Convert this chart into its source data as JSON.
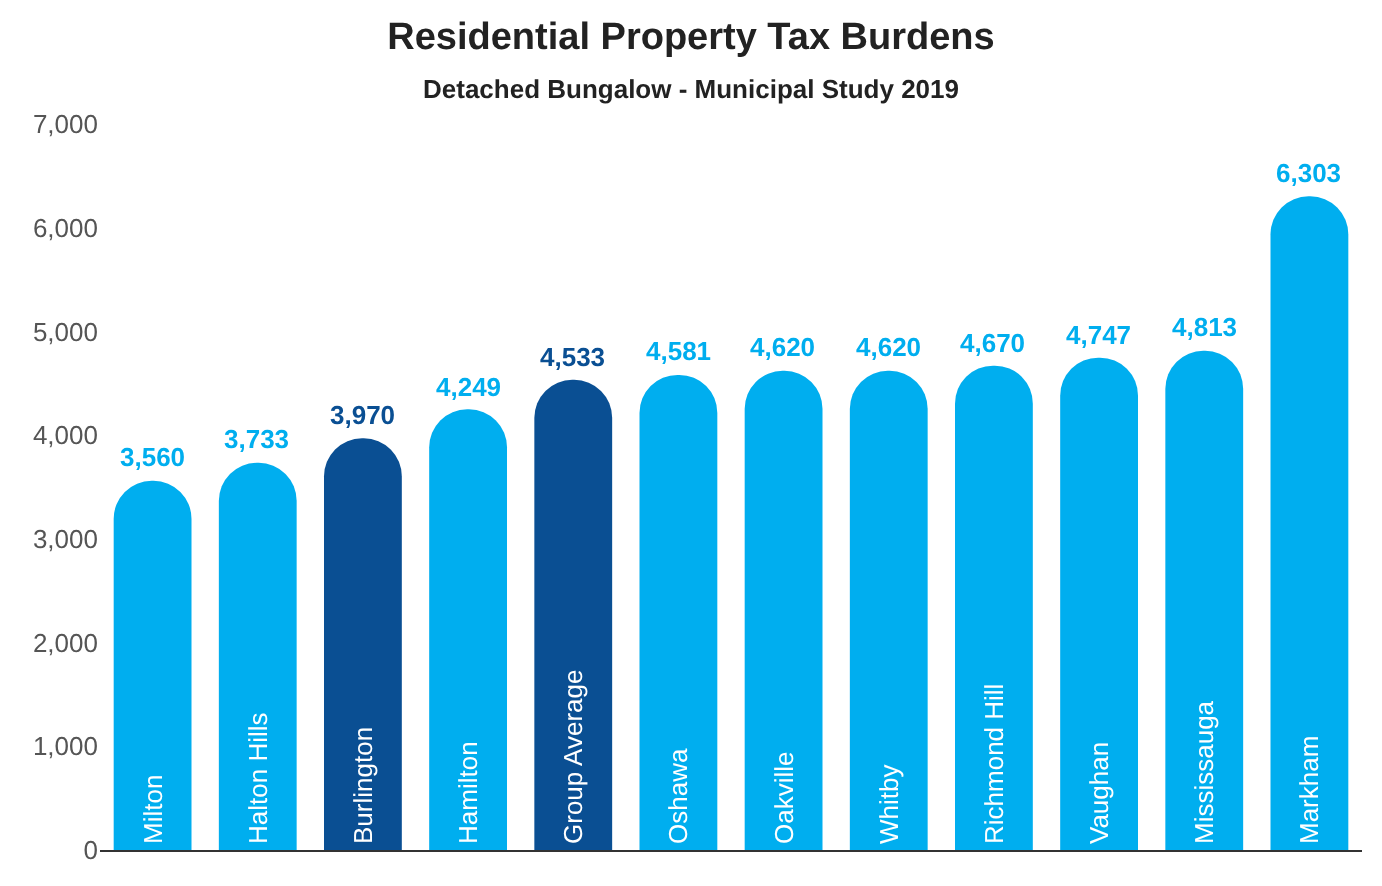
{
  "chart_data": {
    "type": "bar",
    "title": "Residential Property Tax Burdens",
    "subtitle": "Detached Bungalow - Municipal Study 2019",
    "categories": [
      "Milton",
      "Halton Hills",
      "Burlington",
      "Hamilton",
      "Group Average",
      "Oshawa",
      "Oakville",
      "Whitby",
      "Richmond Hill",
      "Vaughan",
      "Mississauga",
      "Markham"
    ],
    "values": [
      3560,
      3733,
      3970,
      4249,
      4533,
      4581,
      4620,
      4620,
      4670,
      4747,
      4813,
      6303
    ],
    "colors": [
      "#00aeef",
      "#00aeef",
      "#0a4f93",
      "#00aeef",
      "#0a4f93",
      "#00aeef",
      "#00aeef",
      "#00aeef",
      "#00aeef",
      "#00aeef",
      "#00aeef",
      "#00aeef"
    ],
    "ylim": [
      0,
      7000
    ],
    "yticks": [
      {
        "value": 0,
        "label": "0"
      },
      {
        "value": 1000,
        "label": "1,000"
      },
      {
        "value": 2000,
        "label": "2,000"
      },
      {
        "value": 3000,
        "label": "3,000"
      },
      {
        "value": 4000,
        "label": "4,000"
      },
      {
        "value": 5000,
        "label": "5,000"
      },
      {
        "value": 6000,
        "label": "6,000"
      },
      {
        "value": 7000,
        "label": "7,000"
      }
    ],
    "value_labels": [
      "3,560",
      "3,733",
      "3,970",
      "4,249",
      "4,533",
      "4,581",
      "4,620",
      "4,620",
      "4,670",
      "4,747",
      "4,813",
      "6,303"
    ],
    "tick_labels": "y"
  }
}
